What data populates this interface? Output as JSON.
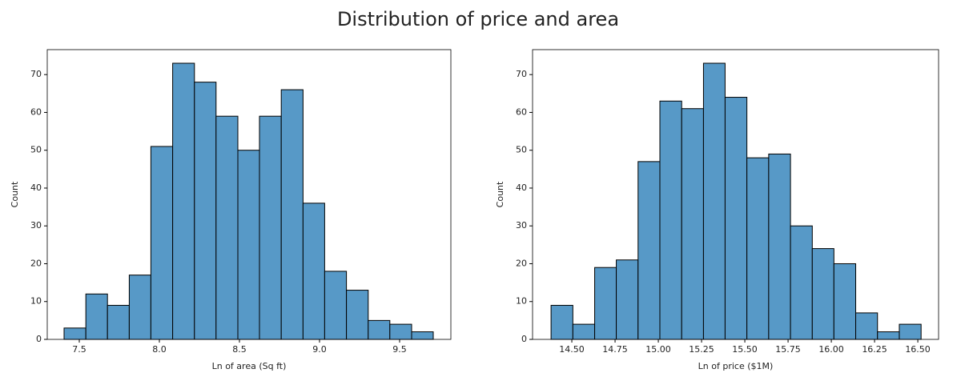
{
  "title": "Distribution of price and area",
  "chart_data": [
    {
      "type": "histogram",
      "xlabel": "Ln of area (Sq ft)",
      "ylabel": "Count",
      "color": "#5799c7",
      "edgecolor": "#000000",
      "bins": [
        7.405,
        7.541,
        7.676,
        7.812,
        7.947,
        8.083,
        8.219,
        8.354,
        8.49,
        8.625,
        8.761,
        8.897,
        9.032,
        9.168,
        9.304,
        9.439,
        9.575,
        9.71
      ],
      "values": [
        3,
        12,
        9,
        17,
        51,
        73,
        68,
        59,
        50,
        59,
        66,
        36,
        18,
        13,
        5,
        4,
        2
      ],
      "xlim": [
        7.3,
        9.82
      ],
      "xticks": [
        7.5,
        {
          "value": 8,
          "label": "8.0"
        },
        8.5,
        {
          "value": 9,
          "label": "9.0"
        },
        9.5
      ],
      "ylim": [
        0,
        76.6
      ],
      "yticks": [
        0,
        10,
        20,
        30,
        40,
        50,
        60,
        70
      ]
    },
    {
      "type": "histogram",
      "xlabel": "Ln of price ($1M)",
      "ylabel": "Count",
      "color": "#5799c7",
      "edgecolor": "#000000",
      "bins": [
        14.38,
        14.506,
        14.632,
        14.757,
        14.883,
        15.009,
        15.135,
        15.261,
        15.386,
        15.512,
        15.638,
        15.764,
        15.89,
        16.015,
        16.141,
        16.267,
        16.393,
        16.519
      ],
      "values": [
        9,
        4,
        19,
        21,
        47,
        63,
        61,
        73,
        64,
        48,
        49,
        30,
        24,
        20,
        7,
        2,
        4
      ],
      "xlim": [
        14.273,
        16.62
      ],
      "xticks": [
        {
          "value": 14.5,
          "label": "14.50"
        },
        {
          "value": 14.75,
          "label": "14.75"
        },
        {
          "value": 15,
          "label": "15.00"
        },
        {
          "value": 15.25,
          "label": "15.25"
        },
        {
          "value": 15.5,
          "label": "15.50"
        },
        {
          "value": 15.75,
          "label": "15.75"
        },
        {
          "value": 16,
          "label": "16.00"
        },
        {
          "value": 16.25,
          "label": "16.25"
        },
        {
          "value": 16.5,
          "label": "16.50"
        }
      ],
      "ylim": [
        0,
        76.6
      ],
      "yticks": [
        0,
        10,
        20,
        30,
        40,
        50,
        60,
        70
      ]
    }
  ]
}
